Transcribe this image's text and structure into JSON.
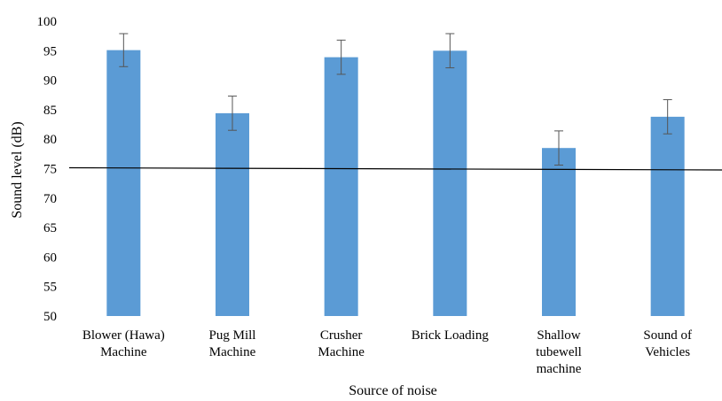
{
  "chart_data": {
    "type": "bar",
    "title": "",
    "xlabel": "Source of noise",
    "ylabel": "Sound level (dB)",
    "ylim": [
      50,
      100
    ],
    "yticks": [
      50,
      55,
      60,
      65,
      70,
      75,
      80,
      85,
      90,
      95,
      100
    ],
    "grid": false,
    "legend": "none",
    "bar_color": "#5b9bd5",
    "categories": [
      [
        "Blower (Hawa)",
        "Machine"
      ],
      [
        "Pug Mill",
        "Machine"
      ],
      [
        "Crusher",
        "Machine"
      ],
      [
        "Brick Loading"
      ],
      [
        "Shallow",
        "tubewell",
        "machine"
      ],
      [
        "Sound of",
        "Vehicles"
      ]
    ],
    "series": [
      {
        "values": [
          95.1,
          84.4,
          93.9,
          95.0,
          78.5,
          83.8
        ],
        "error": [
          2.8,
          2.9,
          2.9,
          2.9,
          2.9,
          2.9
        ]
      }
    ],
    "reference_line": {
      "y": 75,
      "color": "#000000"
    }
  }
}
